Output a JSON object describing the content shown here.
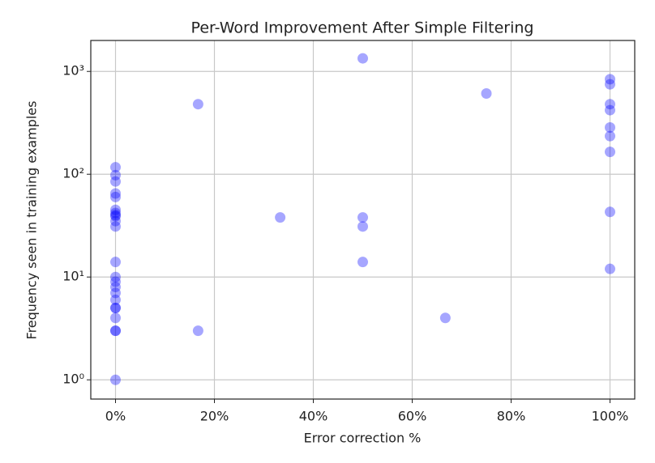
{
  "chart_data": {
    "type": "scatter",
    "title": "Per-Word Improvement After Simple Filtering",
    "x_label": "Error correction %",
    "y_label": "Frequency seen in training examples",
    "log_y": true,
    "grid": true,
    "xlim": [
      -5,
      105
    ],
    "ylim": [
      0.65,
      2000
    ],
    "xticks": [
      {
        "value": 0,
        "label": "0%"
      },
      {
        "value": 20,
        "label": "20%"
      },
      {
        "value": 40,
        "label": "40%"
      },
      {
        "value": 60,
        "label": "60%"
      },
      {
        "value": 80,
        "label": "80%"
      },
      {
        "value": 100,
        "label": "100%"
      }
    ],
    "yticks": [
      {
        "value": 1,
        "label": "10⁰"
      },
      {
        "value": 10,
        "label": "10¹"
      },
      {
        "value": 100,
        "label": "10²"
      },
      {
        "value": 1000,
        "label": "10³"
      }
    ],
    "series": [
      {
        "color": "#0000ff",
        "x": [
          0,
          0,
          0,
          0,
          0,
          0,
          0,
          0,
          0,
          0,
          0,
          0,
          0,
          0,
          0,
          0,
          0,
          0,
          0,
          0,
          0,
          0,
          0,
          16.7,
          16.7,
          33.3,
          50,
          50,
          50,
          50,
          66.7,
          75,
          100,
          100,
          100,
          100,
          100,
          100,
          100,
          100,
          100
        ],
        "values": [
          1,
          3,
          3,
          4,
          5,
          5,
          6,
          7,
          8,
          9,
          10,
          14,
          31,
          35,
          39,
          42,
          45,
          60,
          65,
          85,
          98,
          117,
          40,
          480,
          3,
          38,
          1340,
          38,
          31,
          14,
          4,
          610,
          840,
          750,
          480,
          420,
          285,
          235,
          165,
          43,
          12
        ]
      }
    ]
  }
}
